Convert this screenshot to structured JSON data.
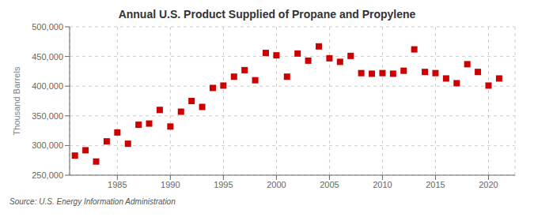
{
  "chart_data": {
    "type": "scatter",
    "title": "Annual U.S. Product Supplied of Propane and Propylene",
    "ylabel": "Thousand Barrels",
    "annotations": [
      "Source: U.S. Energy Information Administration"
    ],
    "x": [
      1981,
      1982,
      1983,
      1984,
      1985,
      1986,
      1987,
      1988,
      1989,
      1990,
      1991,
      1992,
      1993,
      1994,
      1995,
      1996,
      1997,
      1998,
      1999,
      2000,
      2001,
      2002,
      2003,
      2004,
      2005,
      2006,
      2007,
      2008,
      2009,
      2010,
      2011,
      2012,
      2013,
      2014,
      2015,
      2016,
      2017,
      2018,
      2019,
      2020,
      2021
    ],
    "values": [
      283000,
      292000,
      273000,
      307000,
      322000,
      303000,
      335000,
      337000,
      360000,
      332000,
      357000,
      375000,
      365000,
      397000,
      401000,
      416000,
      427000,
      410000,
      456000,
      452000,
      416000,
      455000,
      443000,
      467000,
      447000,
      441000,
      451000,
      422000,
      421000,
      422000,
      421000,
      426000,
      462000,
      424000,
      422000,
      413000,
      405000,
      437000,
      424000,
      401000,
      413000
    ],
    "color": "#cc0000",
    "marker": "square",
    "grid": true,
    "xlim": [
      1980.5,
      2022.5
    ],
    "xticks": [
      1985,
      1990,
      1995,
      2000,
      2005,
      2010,
      2015,
      2020
    ],
    "ylim": [
      250000,
      500000
    ],
    "yticks": [
      {
        "value": 250000,
        "label": "250,000"
      },
      {
        "value": 300000,
        "label": "300,000"
      },
      {
        "value": 350000,
        "label": "350,000"
      },
      {
        "value": 400000,
        "label": "400,000"
      },
      {
        "value": 450000,
        "label": "450,000"
      },
      {
        "value": 500000,
        "label": "500,000"
      }
    ]
  }
}
